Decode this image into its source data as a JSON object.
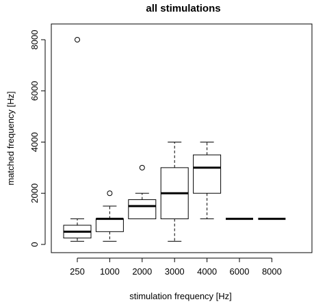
{
  "chart_data": {
    "type": "boxplot",
    "title": "all stimulations",
    "xlabel": "stimulation frequency [Hz]",
    "ylabel": "matched frequency [Hz]",
    "ylim": [
      0,
      8000
    ],
    "yticks": [
      0,
      2000,
      4000,
      6000,
      8000
    ],
    "categories": [
      "250",
      "1000",
      "2000",
      "3000",
      "4000",
      "6000",
      "8000"
    ],
    "boxes": [
      {
        "min": 125,
        "q1": 250,
        "median": 500,
        "q3": 750,
        "max": 1000,
        "outliers": [
          8000
        ]
      },
      {
        "min": 125,
        "q1": 500,
        "median": 1000,
        "q3": 1000,
        "max": 1500,
        "outliers": [
          2000
        ]
      },
      {
        "min": 1000,
        "q1": 1000,
        "median": 1500,
        "q3": 1750,
        "max": 2000,
        "outliers": [
          3000
        ]
      },
      {
        "min": 125,
        "q1": 1000,
        "median": 2000,
        "q3": 3000,
        "max": 4000,
        "outliers": []
      },
      {
        "min": 1000,
        "q1": 2000,
        "median": 3000,
        "q3": 3500,
        "max": 4000,
        "outliers": []
      },
      {
        "min": 1000,
        "q1": 1000,
        "median": 1000,
        "q3": 1000,
        "max": 1000,
        "outliers": []
      },
      {
        "min": 1000,
        "q1": 1000,
        "median": 1000,
        "q3": 1000,
        "max": 1000,
        "outliers": []
      }
    ],
    "grid": false
  }
}
